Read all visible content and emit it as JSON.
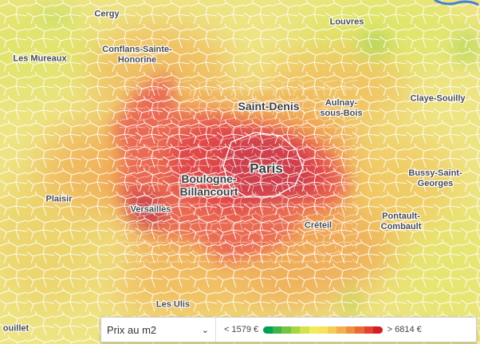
{
  "map": {
    "labels": [
      {
        "id": "cergy",
        "text": "Cergy",
        "size": "normal"
      },
      {
        "id": "louvres",
        "text": "Louvres",
        "size": "normal"
      },
      {
        "id": "les-mureaux",
        "text": "Les Mureaux",
        "size": "normal"
      },
      {
        "id": "conflans",
        "text": "Conflans-Sainte-\nHonorine",
        "size": "normal"
      },
      {
        "id": "saint-denis",
        "text": "Saint-Denis",
        "size": "med"
      },
      {
        "id": "aulnay",
        "text": "Aulnay-\nsous-Bois",
        "size": "normal"
      },
      {
        "id": "claye",
        "text": "Claye-Souilly",
        "size": "normal"
      },
      {
        "id": "paris",
        "text": "Paris",
        "size": "big"
      },
      {
        "id": "boulogne",
        "text": "Boulogne-\nBillancourt",
        "size": "med"
      },
      {
        "id": "bussy",
        "text": "Bussy-Saint-\nGeorges",
        "size": "normal"
      },
      {
        "id": "plaisir",
        "text": "Plaisir",
        "size": "normal"
      },
      {
        "id": "versailles",
        "text": "Versailles",
        "size": "normal"
      },
      {
        "id": "creteil",
        "text": "Créteil",
        "size": "normal"
      },
      {
        "id": "pontault",
        "text": "Pontault-\nCombault",
        "size": "normal"
      },
      {
        "id": "les-ulis",
        "text": "Les Ulis",
        "size": "normal"
      },
      {
        "id": "souillet",
        "text": "ouillet",
        "size": "normal"
      }
    ]
  },
  "controls": {
    "metric_select": {
      "value": "Prix au m2",
      "icon": "chevron-down-icon"
    },
    "legend": {
      "min_label": "< 1579 €",
      "max_label": "> 6814 €",
      "scale_colors": [
        "#00a050",
        "#3db34a",
        "#72c441",
        "#a6d63e",
        "#d3e249",
        "#f0ec5a",
        "#f8e35c",
        "#f5cc55",
        "#f2b04d",
        "#ef8e40",
        "#ea6a36",
        "#e5412e",
        "#d31d24"
      ]
    }
  }
}
